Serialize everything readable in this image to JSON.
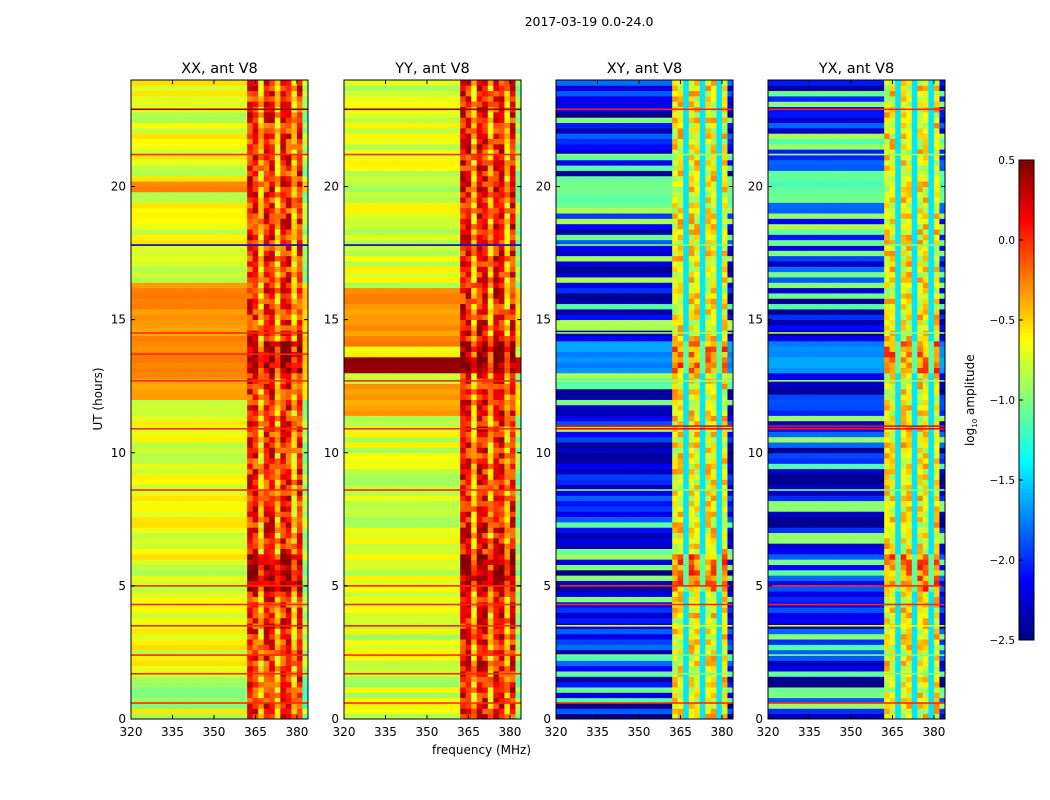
{
  "chart_data": {
    "type": "heatmap",
    "title": "2017-03-19 0.0-24.0",
    "xlabel": "frequency (MHz)",
    "ylabel": "UT (hours)",
    "xlim": [
      320,
      384
    ],
    "ylim": [
      0,
      24
    ],
    "xticks": [
      "320",
      "335",
      "350",
      "365",
      "380"
    ],
    "yticks": [
      "0",
      "5",
      "10",
      "15",
      "20"
    ],
    "colorbar": {
      "label": "log10 amplitude",
      "label_main": "log",
      "label_sub": "10",
      "label_rest": " amplitude",
      "range": [
        -2.5,
        0.5
      ],
      "ticks": [
        "0.5",
        "0.0",
        "−0.5",
        "−1.0",
        "−1.5",
        "−2.0",
        "−2.5"
      ],
      "colormap": "jet"
    },
    "panels": [
      {
        "title": "XX, ant V8",
        "background_log_amp": -0.7,
        "rfi_band_MHz": [
          362,
          381
        ],
        "rfi_log_amp": 0.05,
        "bands": [
          {
            "from": 12.0,
            "to": 16.3,
            "v": -0.3
          },
          {
            "from": 19.8,
            "to": 20.2,
            "v": -0.3
          },
          {
            "from": 0.5,
            "to": 1.5,
            "v": -0.95
          }
        ],
        "lines": [
          {
            "h": 0.6,
            "v": 0.0
          },
          {
            "h": 1.7,
            "v": 0.0
          },
          {
            "h": 2.4,
            "v": 0.0
          },
          {
            "h": 3.5,
            "v": 0.0
          },
          {
            "h": 4.3,
            "v": 0.0
          },
          {
            "h": 5.0,
            "v": 0.0
          },
          {
            "h": 8.6,
            "v": 0.0
          },
          {
            "h": 10.9,
            "v": 0.0
          },
          {
            "h": 12.7,
            "v": 0.0
          },
          {
            "h": 13.7,
            "v": 0.0
          },
          {
            "h": 14.5,
            "v": 0.0
          },
          {
            "h": 17.8,
            "v": -2.3
          },
          {
            "h": 21.2,
            "v": 0.0
          },
          {
            "h": 22.9,
            "v": 0.45
          }
        ]
      },
      {
        "title": "YY, ant V8",
        "background_log_amp": -0.75,
        "rfi_band_MHz": [
          362,
          381
        ],
        "rfi_log_amp": 0.1,
        "bands": [
          {
            "from": 13.1,
            "to": 13.5,
            "v": 0.5
          },
          {
            "from": 14.0,
            "to": 16.2,
            "v": -0.3
          },
          {
            "from": 11.5,
            "to": 12.6,
            "v": -0.35
          }
        ],
        "lines": [
          {
            "h": 0.6,
            "v": 0.0
          },
          {
            "h": 1.7,
            "v": 0.0
          },
          {
            "h": 2.4,
            "v": 0.0
          },
          {
            "h": 3.5,
            "v": 0.0
          },
          {
            "h": 4.3,
            "v": 0.0
          },
          {
            "h": 5.0,
            "v": 0.0
          },
          {
            "h": 8.6,
            "v": 0.0
          },
          {
            "h": 10.9,
            "v": 0.0
          },
          {
            "h": 12.7,
            "v": 0.0
          },
          {
            "h": 17.8,
            "v": -2.3
          },
          {
            "h": 21.2,
            "v": 0.0
          },
          {
            "h": 22.9,
            "v": 0.45
          }
        ]
      },
      {
        "title": "XY, ant V8",
        "background_log_amp": -2.15,
        "rfi_band_MHz": [
          362,
          381
        ],
        "rfi_log_amp": -0.6,
        "bands": [
          {
            "from": 19.5,
            "to": 20.4,
            "v": -1.1
          },
          {
            "from": 13.0,
            "to": 14.2,
            "v": -1.7
          }
        ],
        "lines": [
          {
            "h": 0.6,
            "v": 0.0
          },
          {
            "h": 1.7,
            "v": -1.0
          },
          {
            "h": 2.4,
            "v": -1.0
          },
          {
            "h": 3.5,
            "v": -0.6
          },
          {
            "h": 4.3,
            "v": 0.0
          },
          {
            "h": 5.0,
            "v": 0.0
          },
          {
            "h": 8.6,
            "v": -1.0
          },
          {
            "h": 10.9,
            "v": 0.1
          },
          {
            "h": 11.0,
            "v": 0.1
          },
          {
            "h": 12.7,
            "v": -0.9
          },
          {
            "h": 14.5,
            "v": -0.9
          },
          {
            "h": 17.8,
            "v": -1.0
          },
          {
            "h": 21.2,
            "v": -0.9
          },
          {
            "h": 22.9,
            "v": 0.0
          }
        ]
      },
      {
        "title": "YX, ant V8",
        "background_log_amp": -2.15,
        "rfi_band_MHz": [
          362,
          381
        ],
        "rfi_log_amp": -0.6,
        "bands": [
          {
            "from": 19.5,
            "to": 20.4,
            "v": -1.1
          },
          {
            "from": 13.0,
            "to": 14.2,
            "v": -1.7
          }
        ],
        "lines": [
          {
            "h": 0.6,
            "v": 0.0
          },
          {
            "h": 1.7,
            "v": -1.0
          },
          {
            "h": 2.4,
            "v": -1.0
          },
          {
            "h": 3.5,
            "v": -0.6
          },
          {
            "h": 4.3,
            "v": 0.0
          },
          {
            "h": 5.0,
            "v": 0.0
          },
          {
            "h": 8.6,
            "v": -1.0
          },
          {
            "h": 10.9,
            "v": 0.1
          },
          {
            "h": 11.0,
            "v": 0.1
          },
          {
            "h": 12.7,
            "v": -0.9
          },
          {
            "h": 14.5,
            "v": -0.9
          },
          {
            "h": 17.8,
            "v": -1.0
          },
          {
            "h": 21.2,
            "v": -0.9
          },
          {
            "h": 22.9,
            "v": 0.0
          }
        ]
      }
    ]
  }
}
